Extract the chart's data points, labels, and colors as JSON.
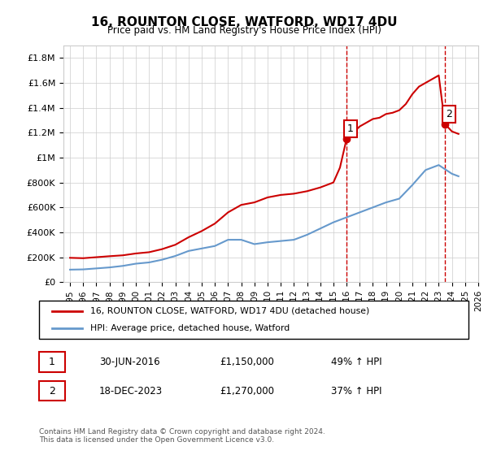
{
  "title": "16, ROUNTON CLOSE, WATFORD, WD17 4DU",
  "subtitle": "Price paid vs. HM Land Registry's House Price Index (HPI)",
  "legend_line1": "16, ROUNTON CLOSE, WATFORD, WD17 4DU (detached house)",
  "legend_line2": "HPI: Average price, detached house, Watford",
  "marker1_label": "1",
  "marker1_date": "30-JUN-2016",
  "marker1_price": "£1,150,000",
  "marker1_hpi": "49% ↑ HPI",
  "marker2_label": "2",
  "marker2_date": "18-DEC-2023",
  "marker2_price": "£1,270,000",
  "marker2_hpi": "37% ↑ HPI",
  "footer": "Contains HM Land Registry data © Crown copyright and database right 2024.\nThis data is licensed under the Open Government Licence v3.0.",
  "red_color": "#cc0000",
  "blue_color": "#6699cc",
  "grid_color": "#cccccc",
  "marker_vline_color": "#cc0000",
  "ylim": [
    0,
    1900000
  ],
  "yticks": [
    0,
    200000,
    400000,
    600000,
    800000,
    1000000,
    1200000,
    1400000,
    1600000,
    1800000
  ],
  "ytick_labels": [
    "£0",
    "£200K",
    "£400K",
    "£600K",
    "£800K",
    "£1M",
    "£1.2M",
    "£1.4M",
    "£1.6M",
    "£1.8M"
  ],
  "xlim_start": 1995.0,
  "xlim_end": 2026.5,
  "marker1_x": 2016.5,
  "marker1_y": 1150000,
  "marker2_x": 2023.97,
  "marker2_y": 1270000,
  "red_x": [
    1995.5,
    1996.5,
    1997.5,
    1998.5,
    1999.5,
    2000.5,
    2001.5,
    2002.5,
    2003.5,
    2004.5,
    2005.5,
    2006.5,
    2007.5,
    2008.5,
    2009.5,
    2010.5,
    2011.5,
    2012.5,
    2013.5,
    2014.5,
    2015.5,
    2016.0,
    2016.5,
    2017.0,
    2017.5,
    2018.0,
    2018.5,
    2019.0,
    2019.5,
    2020.0,
    2020.5,
    2021.0,
    2021.5,
    2022.0,
    2022.5,
    2023.0,
    2023.5,
    2023.97,
    2024.5,
    2025.0
  ],
  "red_y": [
    195000,
    192000,
    200000,
    208000,
    215000,
    230000,
    240000,
    265000,
    300000,
    360000,
    410000,
    470000,
    560000,
    620000,
    640000,
    680000,
    700000,
    710000,
    730000,
    760000,
    800000,
    920000,
    1150000,
    1200000,
    1250000,
    1280000,
    1310000,
    1320000,
    1350000,
    1360000,
    1380000,
    1430000,
    1510000,
    1570000,
    1600000,
    1630000,
    1660000,
    1270000,
    1210000,
    1190000
  ],
  "blue_x": [
    1995.5,
    1996.5,
    1997.5,
    1998.5,
    1999.5,
    2000.5,
    2001.5,
    2002.5,
    2003.5,
    2004.5,
    2005.5,
    2006.5,
    2007.5,
    2008.5,
    2009.5,
    2010.5,
    2011.5,
    2012.5,
    2013.5,
    2014.5,
    2015.5,
    2016.5,
    2017.5,
    2018.5,
    2019.5,
    2020.5,
    2021.5,
    2022.5,
    2023.5,
    2024.5,
    2025.0
  ],
  "blue_y": [
    100000,
    102000,
    110000,
    118000,
    130000,
    148000,
    158000,
    180000,
    210000,
    250000,
    270000,
    290000,
    340000,
    340000,
    305000,
    320000,
    330000,
    340000,
    380000,
    430000,
    480000,
    520000,
    560000,
    600000,
    640000,
    670000,
    780000,
    900000,
    940000,
    870000,
    850000
  ]
}
